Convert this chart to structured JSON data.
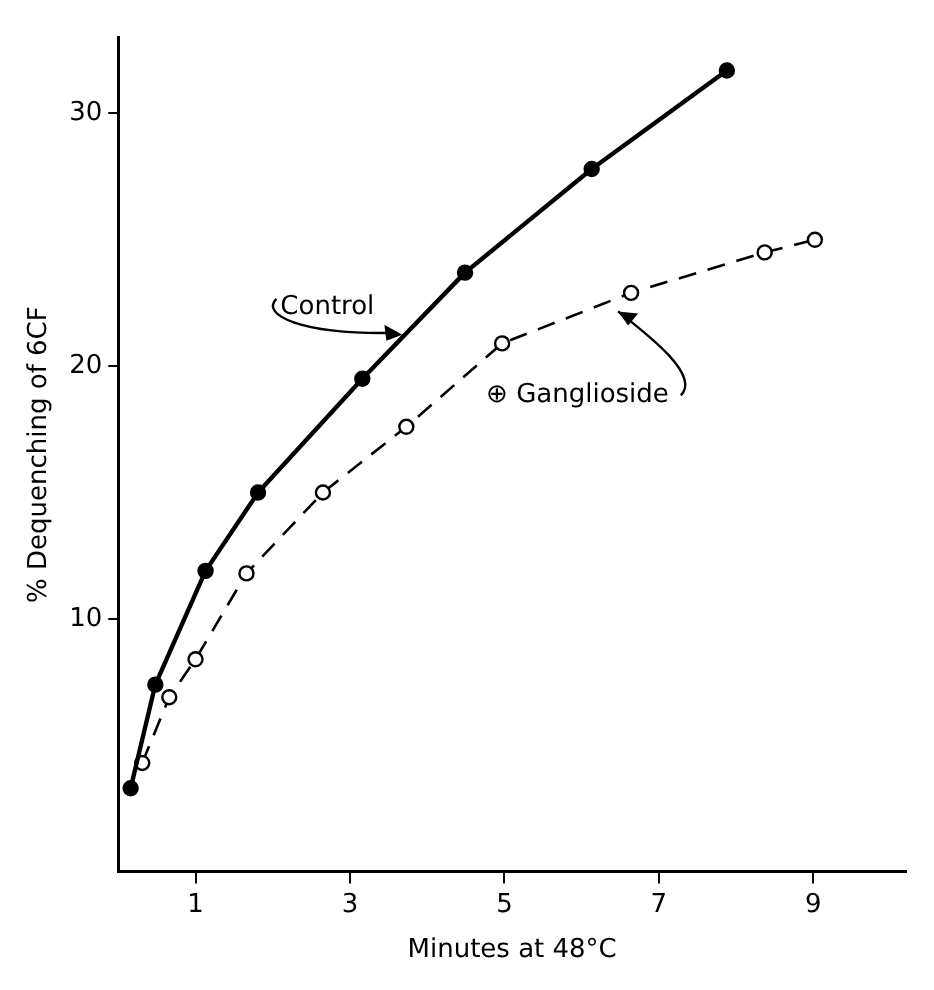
{
  "chart_data": {
    "type": "line",
    "xlabel": "Minutes at 48°C",
    "ylabel": "% Dequenching of 6CF",
    "xlim": [
      0,
      10.2
    ],
    "ylim": [
      0,
      33
    ],
    "xticks": [
      1,
      3,
      5,
      7,
      9
    ],
    "yticks": [
      10,
      20,
      30
    ],
    "grid": false,
    "legend": false,
    "marker": "circle",
    "series": [
      {
        "name": "Control",
        "color": "#000000",
        "line_style": "solid",
        "x": [
          0.16,
          0.48,
          1.13,
          1.81,
          3.16,
          4.49,
          6.13,
          7.88
        ],
        "values": [
          3.3,
          7.4,
          11.9,
          15.0,
          19.5,
          23.7,
          27.8,
          31.7
        ]
      },
      {
        "name": "⊕ Ganglioside",
        "color": "#000000",
        "line_style": "dashed",
        "x": [
          0.31,
          0.66,
          1.0,
          1.66,
          2.65,
          3.73,
          4.97,
          6.64,
          8.37,
          9.02
        ],
        "values": [
          4.3,
          6.9,
          8.4,
          11.8,
          15.0,
          17.6,
          20.9,
          22.9,
          24.5,
          25.0
        ]
      }
    ]
  }
}
